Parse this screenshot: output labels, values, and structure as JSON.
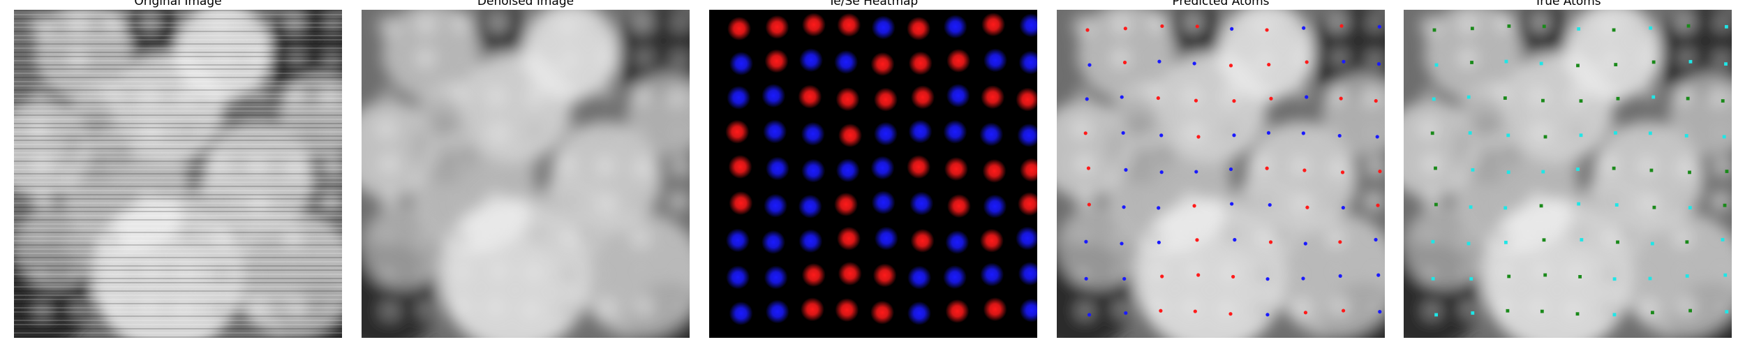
{
  "panels": [
    {
      "id": "original",
      "title": "Original Image"
    },
    {
      "id": "denoised",
      "title": "Denoised Image"
    },
    {
      "id": "heatmap",
      "title": "Te/Se Heatmap"
    },
    {
      "id": "predicted",
      "title": "Predicted Atoms"
    },
    {
      "id": "true",
      "title": "True Atoms"
    }
  ],
  "colors": {
    "figure_background": "#ffffff",
    "te": "#ff1a1a",
    "se": "#1a1aff",
    "true_type_a": "#1fe6e6",
    "true_type_b": "#1a8a1a"
  },
  "lattice": {
    "rows": 9,
    "cols": 9
  },
  "atom_species_grid": [
    [
      "te",
      "te",
      "te",
      "te",
      "se",
      "te",
      "se",
      "te",
      "se"
    ],
    [
      "se",
      "te",
      "se",
      "se",
      "te",
      "te",
      "te",
      "se",
      "se"
    ],
    [
      "se",
      "se",
      "te",
      "te",
      "te",
      "te",
      "se",
      "te",
      "te"
    ],
    [
      "te",
      "se",
      "se",
      "te",
      "se",
      "se",
      "se",
      "se",
      "se"
    ],
    [
      "te",
      "se",
      "se",
      "se",
      "se",
      "te",
      "te",
      "te",
      "te"
    ],
    [
      "te",
      "se",
      "se",
      "te",
      "se",
      "se",
      "te",
      "se",
      "te"
    ],
    [
      "se",
      "se",
      "se",
      "te",
      "se",
      "te",
      "se",
      "te",
      "se"
    ],
    [
      "se",
      "se",
      "te",
      "te",
      "te",
      "se",
      "se",
      "se",
      "se"
    ],
    [
      "se",
      "se",
      "te",
      "te",
      "te",
      "se",
      "te",
      "te",
      "se"
    ]
  ]
}
